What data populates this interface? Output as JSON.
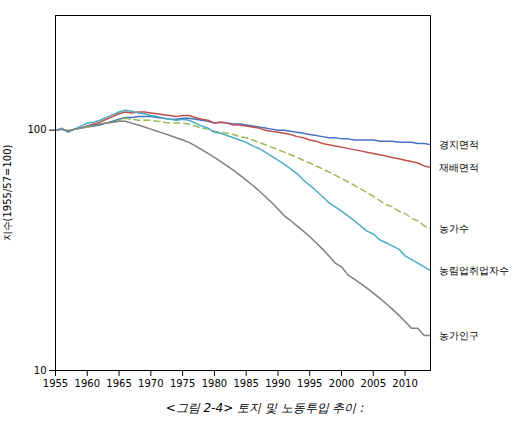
{
  "chart_data": {
    "type": "line",
    "caption": "<그림 2-4> 토지 및 노동투입 추이 :",
    "ylabel": "지수(1955/57=100)",
    "log": "y",
    "xlim": [
      1955,
      2014
    ],
    "ylim": [
      10,
      300
    ],
    "xticks": [
      1955,
      1960,
      1965,
      1970,
      1975,
      1980,
      1985,
      1990,
      1995,
      2000,
      2005,
      2010
    ],
    "yticks": [
      10,
      100
    ],
    "x": [
      1955,
      1956,
      1957,
      1958,
      1959,
      1960,
      1961,
      1962,
      1963,
      1964,
      1965,
      1966,
      1967,
      1968,
      1969,
      1970,
      1971,
      1972,
      1973,
      1974,
      1975,
      1976,
      1977,
      1978,
      1979,
      1980,
      1981,
      1982,
      1983,
      1984,
      1985,
      1986,
      1987,
      1988,
      1989,
      1990,
      1991,
      1992,
      1993,
      1994,
      1995,
      1996,
      1997,
      1998,
      1999,
      2000,
      2001,
      2002,
      2003,
      2004,
      2005,
      2006,
      2007,
      2008,
      2009,
      2010,
      2011,
      2012,
      2013,
      2014
    ],
    "series": [
      {
        "name": "경지면적",
        "color": "#4472C4",
        "line_style": "solid",
        "values": [
          100,
          101,
          99,
          101,
          102,
          103,
          104,
          105,
          107,
          109,
          111,
          113,
          113,
          114,
          114,
          114,
          113,
          112,
          111,
          111,
          112,
          112,
          111,
          110,
          109,
          107,
          108,
          107,
          106,
          106,
          105,
          104,
          103,
          102,
          101,
          100,
          100,
          99,
          98,
          97,
          96,
          95,
          94,
          93,
          93,
          92,
          92,
          91,
          91,
          91,
          91,
          90,
          90,
          90,
          89,
          89,
          89,
          88,
          88,
          87
        ]
      },
      {
        "name": "재배면적",
        "color": "#C0504D",
        "line_style": "solid",
        "values": [
          100,
          101,
          99,
          101,
          102,
          104,
          106,
          108,
          111,
          114,
          117,
          119,
          118,
          119,
          119,
          118,
          117,
          116,
          115,
          114,
          115,
          115,
          113,
          111,
          110,
          107,
          108,
          107,
          105,
          105,
          104,
          103,
          102,
          100,
          99,
          98,
          97,
          96,
          94,
          93,
          91,
          90,
          88,
          87,
          86,
          85,
          84,
          83,
          82,
          81,
          80,
          79,
          78,
          77,
          76,
          75,
          74,
          73,
          71,
          70
        ]
      },
      {
        "name": "농가수",
        "color": "#9BBB59",
        "line_style": "dashed",
        "values": [
          100,
          101,
          100,
          101,
          102,
          103,
          105,
          106,
          107,
          108,
          110,
          112,
          111,
          110,
          110,
          110,
          109,
          108,
          107,
          107,
          107,
          106,
          104,
          102,
          101,
          99,
          98,
          97,
          96,
          94,
          93,
          91,
          89,
          87,
          85,
          83,
          81,
          79,
          77,
          75,
          73,
          71,
          69,
          67,
          65,
          63,
          61,
          59,
          57,
          55,
          53,
          51,
          49,
          48,
          46,
          45,
          43,
          42,
          40,
          39
        ]
      },
      {
        "name": "농림업취업자수",
        "color": "#4BACC6",
        "line_style": "solid",
        "values": [
          100,
          102,
          98,
          101,
          104,
          107,
          108,
          110,
          113,
          116,
          119,
          121,
          120,
          118,
          117,
          115,
          114,
          112,
          111,
          110,
          111,
          110,
          107,
          104,
          102,
          98,
          97,
          95,
          93,
          91,
          89,
          86,
          84,
          81,
          78,
          75,
          72,
          69,
          66,
          62,
          59,
          56,
          53,
          50,
          48,
          46,
          44,
          42,
          40,
          38,
          37,
          35,
          34,
          33,
          32,
          30,
          29,
          28,
          27,
          26
        ]
      },
      {
        "name": "농가인구",
        "color": "#808080",
        "line_style": "solid",
        "values": [
          100,
          101,
          99,
          101,
          102,
          104,
          105,
          106,
          107,
          108,
          109,
          109,
          107,
          105,
          103,
          101,
          99,
          97,
          95,
          93,
          91,
          89,
          86,
          83,
          80,
          77,
          74,
          71,
          68,
          65,
          62,
          59,
          56,
          53,
          50,
          47,
          44,
          42,
          40,
          38,
          36,
          34,
          32,
          30,
          28,
          27,
          25,
          24,
          23,
          22,
          21,
          20,
          19,
          18,
          17,
          16,
          15,
          15,
          14,
          14
        ]
      }
    ]
  }
}
